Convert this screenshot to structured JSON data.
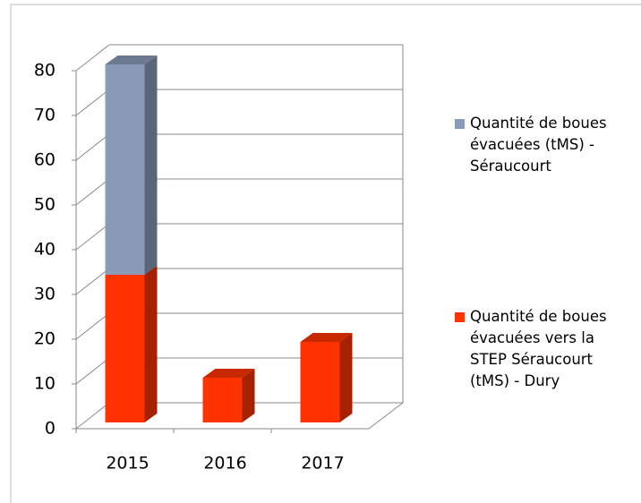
{
  "chart_data": {
    "type": "bar3d_stacked",
    "categories": [
      "2015",
      "2016",
      "2017"
    ],
    "series": [
      {
        "name": "Quantité de boues évacuées vers la STEP Séraucourt (tMS) - Dury",
        "color": "#ff3300",
        "values": [
          33,
          10,
          18
        ]
      },
      {
        "name": "Quantité de boues évacuées (tMS) - Séraucourt",
        "color": "#8a9bb8",
        "values": [
          47,
          null,
          null
        ]
      }
    ],
    "ylim": [
      0,
      80
    ],
    "yticks": [
      0,
      10,
      20,
      30,
      40,
      50,
      60,
      70,
      80
    ],
    "grid": true,
    "legend": "right"
  }
}
